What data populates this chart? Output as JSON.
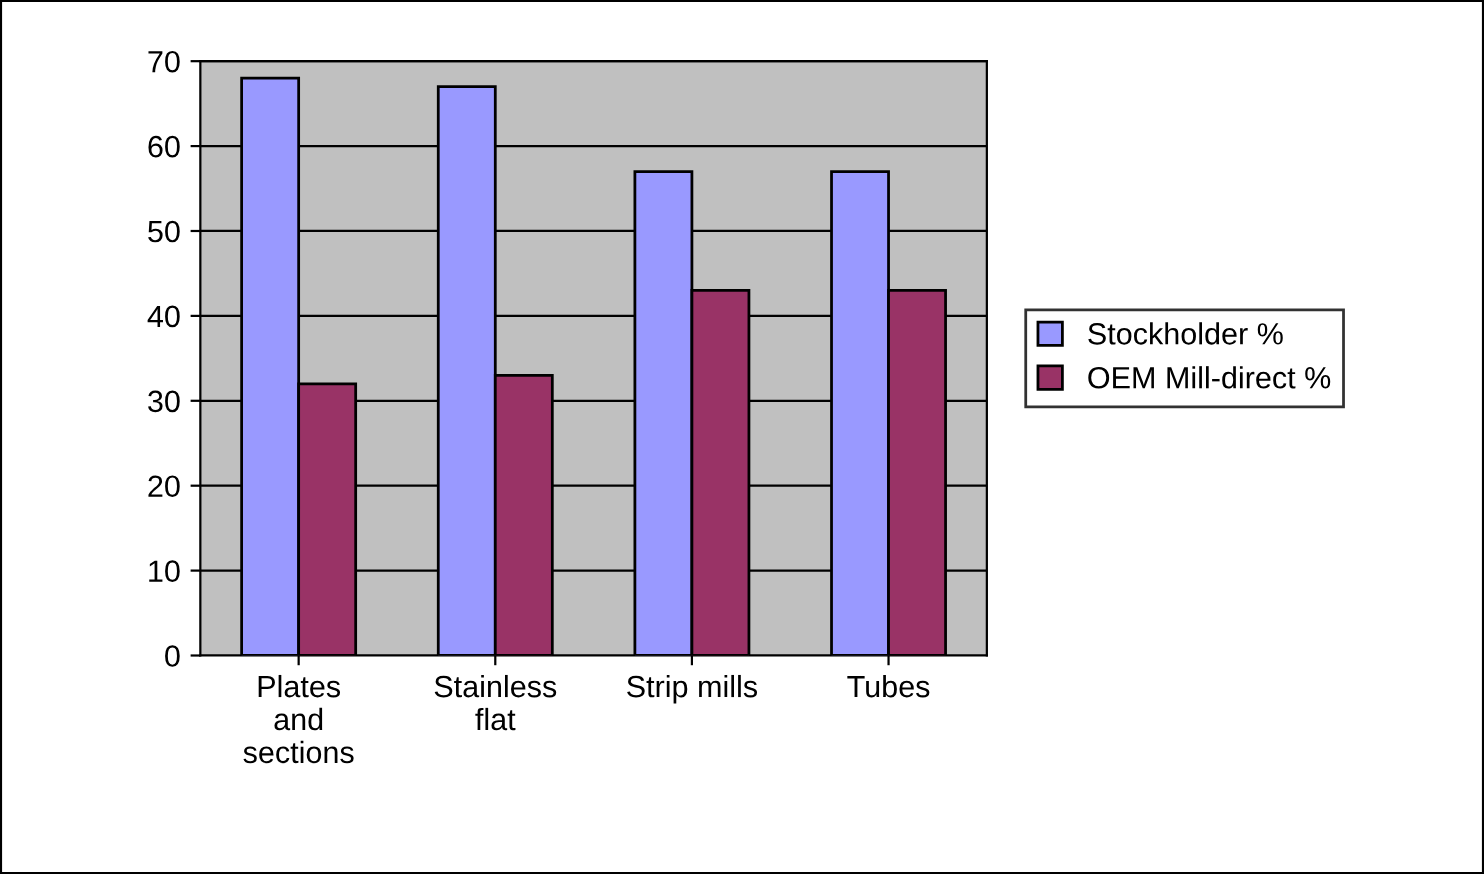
{
  "chart_data": {
    "type": "bar",
    "categories": [
      "Plates\nand\nsections",
      "Stainless\nflat",
      "Strip mills",
      "Tubes"
    ],
    "series": [
      {
        "name": "Stockholder %",
        "color": "#9999ff",
        "values": [
          68,
          67,
          57,
          57
        ]
      },
      {
        "name": "OEM Mill-direct %",
        "color": "#993366",
        "values": [
          32,
          33,
          43,
          43
        ]
      }
    ],
    "ylim": [
      0,
      70
    ],
    "yticks": [
      0,
      10,
      20,
      30,
      40,
      50,
      60,
      70
    ],
    "grid": "y",
    "legend": "right"
  }
}
